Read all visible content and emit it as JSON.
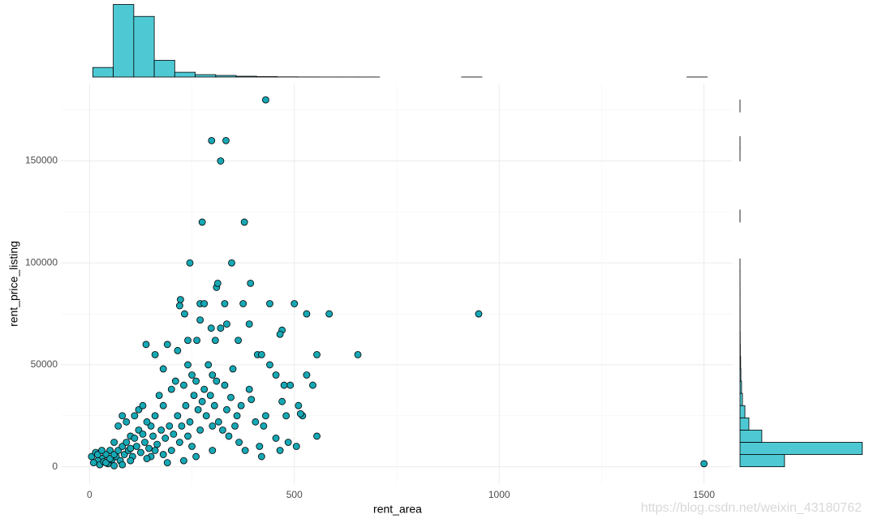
{
  "chart_data": [
    {
      "type": "scatter",
      "xlabel": "rent_area",
      "ylabel": "rent_price_listing",
      "color": "#17a8b5",
      "edgecolor": "#000000",
      "grid": true,
      "xlim": [
        -70,
        1570
      ],
      "ylim": [
        -8500,
        188000
      ],
      "xticks": [
        0,
        500,
        1000,
        1500
      ],
      "xminorticks": [
        250,
        750,
        1250
      ],
      "yticks": [
        0,
        50000,
        100000,
        150000
      ],
      "yminorticks": [
        25000,
        75000,
        125000,
        175000
      ],
      "x": [
        430,
        298,
        333,
        320,
        275,
        378,
        245,
        347,
        310,
        313,
        393,
        222,
        220,
        270,
        280,
        330,
        375,
        440,
        500,
        530,
        585,
        950,
        232,
        270,
        335,
        390,
        470,
        465,
        297,
        320,
        1500,
        655,
        555,
        410,
        420,
        160,
        138,
        190,
        215,
        240,
        262,
        307,
        363,
        180,
        240,
        290,
        350,
        440,
        455,
        530,
        545,
        475,
        490,
        510,
        520,
        515,
        480,
        470,
        430,
        425,
        455,
        485,
        505,
        555,
        465,
        420,
        415,
        380,
        405,
        370,
        390,
        395,
        360,
        340,
        330,
        300,
        260,
        230,
        200,
        180,
        160,
        150,
        140,
        120,
        100,
        80,
        70,
        60,
        50,
        40,
        30,
        20,
        10,
        5,
        15,
        25,
        35,
        45,
        55,
        65,
        75,
        85,
        95,
        105,
        115,
        125,
        135,
        145,
        155,
        165,
        175,
        185,
        195,
        205,
        215,
        225,
        235,
        245,
        255,
        265,
        275,
        285,
        295,
        305,
        315,
        325,
        335,
        345,
        355,
        365,
        300,
        250,
        200,
        150,
        100,
        120,
        90,
        110,
        130,
        170,
        210,
        250,
        280,
        310,
        20,
        30,
        40,
        50,
        60,
        70,
        80,
        90,
        100,
        110,
        130,
        140,
        160,
        180,
        220,
        240,
        270,
        300,
        260,
        230,
        190,
        60,
        80
      ],
      "y": [
        180000,
        160000,
        160000,
        150000,
        120000,
        120000,
        100000,
        100000,
        88000,
        90000,
        90000,
        82000,
        79000,
        80000,
        80000,
        80000,
        80000,
        80000,
        80000,
        75000,
        75000,
        75000,
        75000,
        72000,
        70000,
        70000,
        67000,
        65000,
        68000,
        68000,
        1500,
        55000,
        55000,
        55000,
        55000,
        55000,
        60000,
        60000,
        57000,
        62000,
        62000,
        62000,
        62000,
        48000,
        50000,
        50000,
        48000,
        50000,
        45000,
        45000,
        40000,
        40000,
        40000,
        30000,
        25000,
        26000,
        25000,
        32000,
        25000,
        20000,
        14000,
        12000,
        10000,
        15000,
        8000,
        5000,
        10000,
        8000,
        22000,
        30000,
        38000,
        33000,
        25000,
        15000,
        40000,
        45000,
        42000,
        40000,
        38000,
        30000,
        25000,
        20000,
        22000,
        18000,
        15000,
        25000,
        20000,
        12000,
        8000,
        6000,
        4000,
        3000,
        2000,
        5000,
        7000,
        1000,
        2500,
        1500,
        3500,
        5000,
        3000,
        6000,
        8000,
        5000,
        10000,
        7000,
        12000,
        9000,
        15000,
        11000,
        18000,
        14000,
        20000,
        16000,
        25000,
        20000,
        30000,
        22000,
        35000,
        28000,
        32000,
        25000,
        35000,
        30000,
        22000,
        18000,
        28000,
        34000,
        20000,
        12000,
        8000,
        10000,
        8000,
        5000,
        3000,
        28000,
        22000,
        25000,
        30000,
        35000,
        42000,
        45000,
        38000,
        42000,
        6000,
        8000,
        2000,
        4000,
        6000,
        8000,
        10000,
        12000,
        9000,
        14000,
        16000,
        4000,
        8000,
        6000,
        12000,
        15000,
        18000,
        20000,
        5000,
        3000,
        2000,
        500,
        1000
      ]
    },
    {
      "type": "histogram",
      "color": "#4ec9d4",
      "edgecolor": "#000000",
      "ylim": [
        0,
        3700
      ],
      "bins": [
        8,
        58,
        108,
        158,
        208,
        258,
        308,
        358,
        408,
        458,
        508,
        558,
        608,
        658,
        708,
        758,
        808,
        858,
        908,
        958,
        1008,
        1058,
        1108,
        1158,
        1208,
        1258,
        1308,
        1358,
        1408,
        1458,
        1508
      ],
      "values": [
        480,
        3640,
        3040,
        840,
        240,
        120,
        80,
        40,
        20,
        8,
        4,
        2,
        2,
        1,
        0,
        0,
        0,
        0,
        1,
        0,
        0,
        0,
        0,
        0,
        0,
        0,
        0,
        0,
        0,
        1
      ]
    },
    {
      "type": "histogram",
      "orientation": "horizontal",
      "color": "#4ec9d4",
      "edgecolor": "#000000",
      "xlim": [
        0,
        5500
      ],
      "bins": [
        0,
        6000,
        12000,
        18000,
        24000,
        30000,
        36000,
        42000,
        48000,
        54000,
        60000,
        66000,
        72000,
        78000,
        84000,
        90000,
        96000,
        102000,
        108000,
        114000,
        120000,
        126000,
        132000,
        138000,
        144000,
        150000,
        156000,
        162000,
        168000,
        174000,
        180000
      ],
      "values": [
        2000,
        5490,
        980,
        400,
        220,
        110,
        70,
        40,
        30,
        15,
        10,
        6,
        4,
        3,
        3,
        2,
        1,
        0,
        0,
        0,
        2,
        0,
        0,
        0,
        0,
        1,
        2,
        0,
        0,
        1
      ]
    }
  ],
  "watermark": "https://blog.csdn.net/weixin_43180762"
}
